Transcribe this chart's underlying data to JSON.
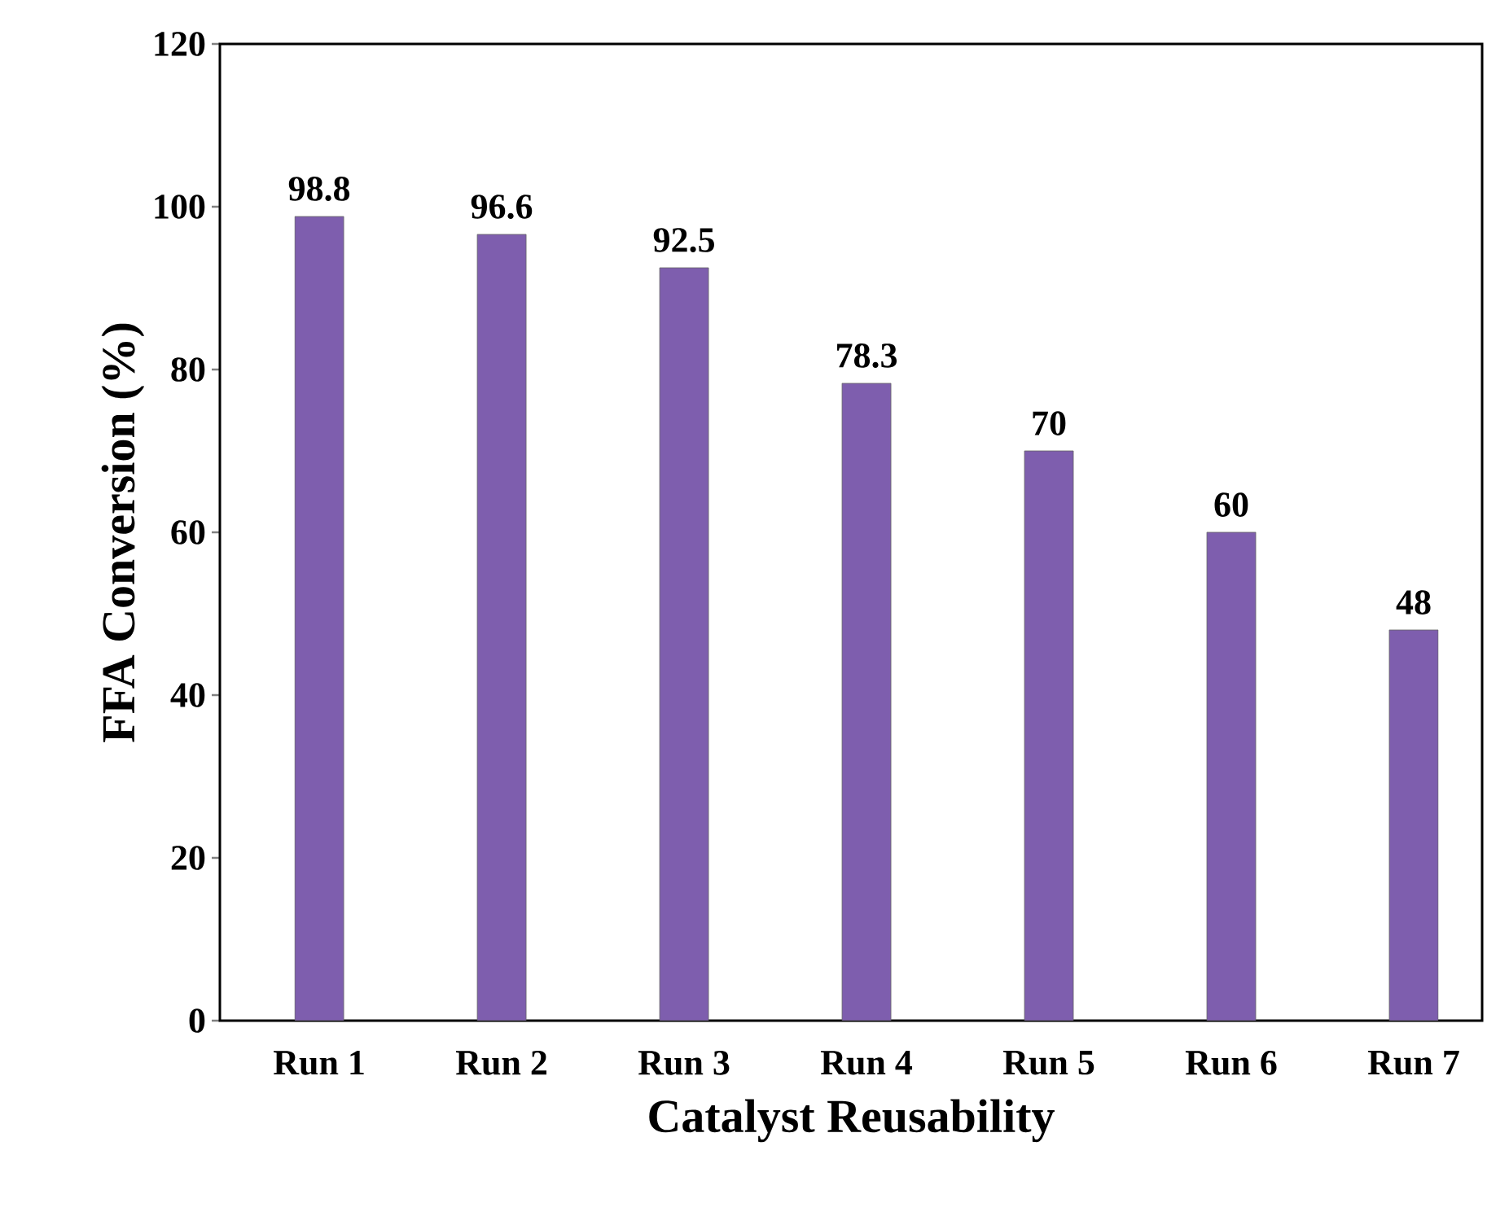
{
  "chart_data": {
    "type": "bar",
    "xlabel": "Catalyst Reusability",
    "ylabel": "FFA Conversion (%)",
    "categories": [
      "Run 1",
      "Run 2",
      "Run 3",
      "Run 4",
      "Run 5",
      "Run 6",
      "Run 7"
    ],
    "values": [
      98.8,
      96.6,
      92.5,
      78.3,
      70,
      60,
      48
    ],
    "color": "#7e5eae",
    "ylim": [
      0,
      120
    ],
    "yticks": [
      0,
      20,
      40,
      60,
      80,
      100,
      120
    ],
    "data_labels": true
  }
}
